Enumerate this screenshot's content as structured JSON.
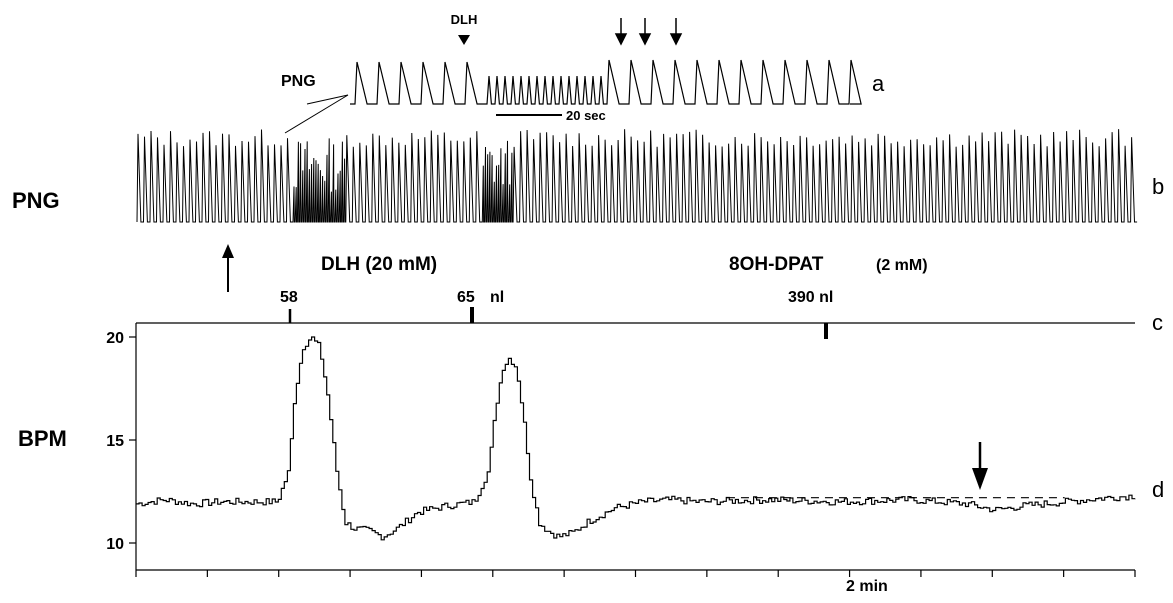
{
  "colors": {
    "trace": "#000000",
    "background": "#ffffff"
  },
  "labels": {
    "png_left": "PNG",
    "png_inset": "PNG",
    "bpm": "BPM",
    "drug1": "DLH  (20 mM)",
    "drug2_name": "8OH-DPAT",
    "drug2_conc": "(2 mM)",
    "vol1": "58",
    "vol2": "65",
    "vol2_unit": "nl",
    "vol3": "390 nl",
    "inset_marker": "DLH",
    "inset_scale": "20 sec",
    "time_scale": "2 min",
    "panel_a": "a",
    "panel_b": "b",
    "panel_c": "c",
    "panel_d": "d"
  },
  "chart_data": [
    {
      "panel": "a",
      "type": "line",
      "title": "",
      "description_text": "Expanded PNG bursts; DLH marker and three arrows; scale bar 20 sec",
      "scale_bar": "20 sec"
    },
    {
      "panel": "b",
      "type": "line",
      "ylabel": "PNG",
      "note": "Phrenic nerve bursts; two dense high-frequency episodes following DLH injections"
    },
    {
      "panel": "c",
      "type": "line",
      "events": [
        {
          "label": "58",
          "drug": "DLH (20 mM)",
          "t": 1.1
        },
        {
          "label": "65 nl",
          "drug": "DLH (20 mM)",
          "t": 2.35
        },
        {
          "label": "390 nl",
          "drug": "8OH-DPAT (2 mM)",
          "t": 4.85
        }
      ]
    },
    {
      "panel": "d",
      "type": "line",
      "ylabel": "BPM",
      "yticks": [
        10,
        15,
        20
      ],
      "ylim": [
        9,
        21
      ],
      "xlim": [
        0,
        7.1
      ],
      "xlabel": "2 min",
      "x_ticks_count": 15,
      "baseline_dashed": 12.2,
      "x": [
        0,
        0.2,
        0.4,
        0.6,
        0.8,
        1.0,
        1.08,
        1.12,
        1.18,
        1.24,
        1.3,
        1.36,
        1.42,
        1.48,
        1.55,
        1.65,
        1.75,
        1.85,
        2.0,
        2.2,
        2.4,
        2.5,
        2.55,
        2.6,
        2.65,
        2.7,
        2.75,
        2.8,
        2.86,
        2.92,
        3.0,
        3.1,
        3.2,
        3.4,
        3.6,
        3.8,
        4.0,
        4.5,
        5.0,
        5.5,
        5.9,
        6.1,
        6.3,
        6.6,
        6.9,
        7.1
      ],
      "y": [
        11.9,
        12.1,
        11.9,
        12.0,
        12.0,
        12.0,
        13.5,
        17.0,
        19.5,
        20.0,
        19.5,
        17.0,
        13.5,
        11.0,
        10.7,
        10.6,
        10.3,
        10.7,
        11.5,
        11.8,
        12.0,
        13.5,
        16.5,
        18.5,
        19.0,
        18.5,
        16.0,
        13.0,
        11.0,
        10.6,
        10.3,
        10.5,
        11.0,
        11.7,
        12.0,
        12.1,
        12.0,
        12.1,
        12.0,
        12.1,
        11.9,
        11.6,
        11.8,
        12.0,
        12.2,
        12.3
      ]
    }
  ]
}
